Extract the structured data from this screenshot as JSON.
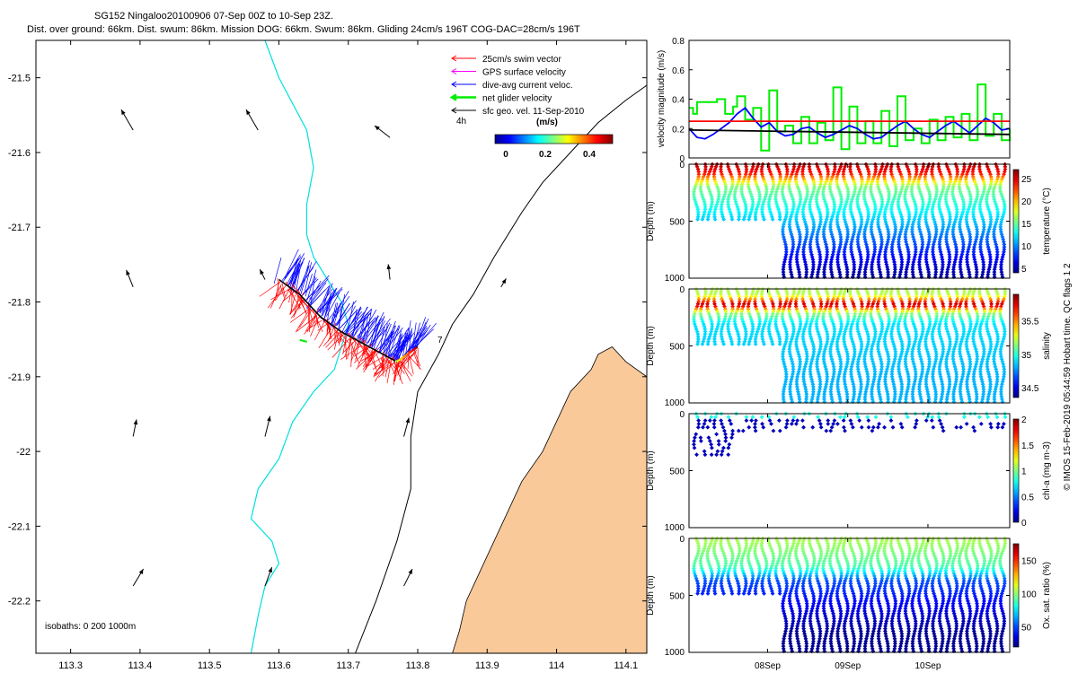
{
  "header": {
    "title": "SG152 Ningaloo20100906 07-Sep 00Z to 10-Sep 23Z.",
    "subtitle": "Dist. over ground: 66km. Dist. swum: 86km. Mission DOG: 66km. Swum: 86km. Gliding 24cm/s 196T COG-DAC=28cm/s 196T"
  },
  "colors": {
    "swim": "#ff0000",
    "gps": "#ff00ff",
    "dac": "#0000ff",
    "net": "#00ee00",
    "sfc": "#000000",
    "coast": "#00e0e0",
    "land": "#f9c99a",
    "refline": "#ff0000"
  },
  "legend": {
    "items": [
      {
        "label": "25cm/s swim vector",
        "color": "#ff0000"
      },
      {
        "label": "GPS surface velocity",
        "color": "#ff00ff"
      },
      {
        "label": "dive-avg current veloc.",
        "color": "#0000ff"
      },
      {
        "label": "net glider velocity",
        "color": "#00ee00"
      },
      {
        "label": "sfc geo. vel. 11-Sep-2010",
        "color": "#000000"
      }
    ],
    "time_label": "4h",
    "speed_label": "(m/s)",
    "colorbar_ticks": [
      "0",
      "0.2",
      "0.4"
    ]
  },
  "map": {
    "isobaths_label": "isobaths: 0   200  1000m",
    "end_label": "7"
  },
  "footer": {
    "credit": "© IMOS 15-Feb-2019 05:44:59 Hobart time. QC flags 1  2"
  },
  "chart_data": [
    {
      "type": "scatter",
      "name": "track-map",
      "xlabel": "",
      "ylabel": "",
      "xlim": [
        113.25,
        114.13
      ],
      "ylim": [
        -22.27,
        -21.45
      ],
      "xticks": [
        113.3,
        113.4,
        113.5,
        113.6,
        113.7,
        113.8,
        113.9,
        114.0,
        114.1
      ],
      "xtick_labels": [
        "113.3",
        "113.4",
        "113.5",
        "113.6",
        "113.7",
        "113.8",
        "113.9",
        "114",
        "114.1"
      ],
      "yticks": [
        -21.5,
        -21.6,
        -21.7,
        -21.8,
        -21.9,
        -22.0,
        -22.1,
        -22.2
      ],
      "ytick_labels": [
        "-21.5",
        "-21.6",
        "-21.7",
        "-21.8",
        "-21.9",
        "-22",
        "-22.1",
        "-22.2"
      ],
      "isobath_0": [
        [
          114.13,
          -21.9
        ],
        [
          114.1,
          -21.88
        ],
        [
          114.08,
          -21.86
        ],
        [
          114.06,
          -21.87
        ],
        [
          114.05,
          -21.89
        ],
        [
          114.02,
          -21.92
        ],
        [
          114.0,
          -21.96
        ],
        [
          113.98,
          -22.0
        ],
        [
          113.95,
          -22.04
        ],
        [
          113.93,
          -22.08
        ],
        [
          113.91,
          -22.12
        ],
        [
          113.89,
          -22.16
        ],
        [
          113.87,
          -22.2
        ],
        [
          113.86,
          -22.24
        ],
        [
          113.85,
          -22.27
        ],
        [
          114.13,
          -22.27
        ]
      ],
      "isobath_200": [
        [
          113.56,
          -22.27
        ],
        [
          113.57,
          -22.22
        ],
        [
          113.58,
          -22.18
        ],
        [
          113.6,
          -22.15
        ],
        [
          113.59,
          -22.12
        ],
        [
          113.56,
          -22.09
        ],
        [
          113.57,
          -22.05
        ],
        [
          113.6,
          -22.01
        ],
        [
          113.62,
          -21.96
        ],
        [
          113.65,
          -21.92
        ],
        [
          113.68,
          -21.89
        ],
        [
          113.69,
          -21.86
        ],
        [
          113.7,
          -21.83
        ],
        [
          113.69,
          -21.8
        ],
        [
          113.67,
          -21.77
        ],
        [
          113.65,
          -21.74
        ],
        [
          113.64,
          -21.71
        ],
        [
          113.64,
          -21.67
        ],
        [
          113.65,
          -21.62
        ],
        [
          113.64,
          -21.57
        ],
        [
          113.6,
          -21.5
        ],
        [
          113.58,
          -21.45
        ]
      ],
      "isobath_1000": [
        [
          113.71,
          -22.27
        ],
        [
          113.74,
          -22.2
        ],
        [
          113.77,
          -22.12
        ],
        [
          113.79,
          -22.05
        ],
        [
          113.79,
          -21.98
        ],
        [
          113.8,
          -21.92
        ],
        [
          113.83,
          -21.87
        ],
        [
          113.85,
          -21.83
        ],
        [
          113.88,
          -21.79
        ],
        [
          113.91,
          -21.74
        ],
        [
          113.95,
          -21.68
        ],
        [
          113.98,
          -21.64
        ],
        [
          114.02,
          -21.6
        ],
        [
          114.06,
          -21.56
        ],
        [
          114.1,
          -21.53
        ],
        [
          114.13,
          -21.51
        ]
      ],
      "track": [
        [
          113.6,
          -21.77
        ],
        [
          113.63,
          -21.79
        ],
        [
          113.66,
          -21.82
        ],
        [
          113.69,
          -21.84
        ],
        [
          113.72,
          -21.855
        ],
        [
          113.75,
          -21.87
        ],
        [
          113.77,
          -21.88
        ],
        [
          113.8,
          -21.86
        ]
      ],
      "geo_arrows": [
        {
          "lon": 113.39,
          "lat": -21.57,
          "u": -0.35,
          "v": 0.6
        },
        {
          "lon": 113.57,
          "lat": -21.57,
          "u": -0.35,
          "v": 0.6
        },
        {
          "lon": 113.76,
          "lat": -21.58,
          "u": -0.45,
          "v": 0.35
        },
        {
          "lon": 113.39,
          "lat": -21.78,
          "u": -0.2,
          "v": 0.5
        },
        {
          "lon": 113.58,
          "lat": -21.77,
          "u": -0.15,
          "v": 0.3
        },
        {
          "lon": 113.76,
          "lat": -21.77,
          "u": -0.05,
          "v": 0.45
        },
        {
          "lon": 113.92,
          "lat": -21.78,
          "u": 0.15,
          "v": 0.25
        },
        {
          "lon": 113.39,
          "lat": -21.98,
          "u": 0.1,
          "v": 0.5
        },
        {
          "lon": 113.58,
          "lat": -21.98,
          "u": 0.15,
          "v": 0.6
        },
        {
          "lon": 113.78,
          "lat": -21.98,
          "u": 0.15,
          "v": 0.55
        },
        {
          "lon": 113.39,
          "lat": -22.18,
          "u": 0.3,
          "v": 0.5
        },
        {
          "lon": 113.58,
          "lat": -22.18,
          "u": 0.2,
          "v": 0.55
        },
        {
          "lon": 113.78,
          "lat": -22.18,
          "u": 0.25,
          "v": 0.5
        }
      ]
    },
    {
      "type": "line",
      "name": "velocity-magnitude",
      "ylabel": "velocity magnitude (m/s)",
      "ylim": [
        0,
        0.8
      ],
      "yticks": [
        0,
        0.2,
        0.4,
        0.6,
        0.8
      ],
      "ytick_labels": [
        "0",
        "0.2",
        "0.4",
        "0.6",
        "0.8"
      ],
      "xlim": [
        0,
        4
      ],
      "series": [
        {
          "name": "net glider velocity",
          "color": "#00ee00",
          "x": [
            0.0,
            0.05,
            0.1,
            0.35,
            0.45,
            0.55,
            0.6,
            0.7,
            0.8,
            0.9,
            1.0,
            1.1,
            1.2,
            1.3,
            1.4,
            1.5,
            1.6,
            1.7,
            1.8,
            1.9,
            2.0,
            2.1,
            2.2,
            2.3,
            2.4,
            2.5,
            2.6,
            2.7,
            2.8,
            2.9,
            3.0,
            3.1,
            3.2,
            3.3,
            3.4,
            3.5,
            3.6,
            3.7,
            3.8,
            3.9,
            4.0
          ],
          "y": [
            0.34,
            0.3,
            0.38,
            0.4,
            0.3,
            0.35,
            0.42,
            0.26,
            0.34,
            0.05,
            0.46,
            0.18,
            0.22,
            0.1,
            0.28,
            0.1,
            0.24,
            0.12,
            0.48,
            0.06,
            0.35,
            0.1,
            0.25,
            0.1,
            0.32,
            0.08,
            0.42,
            0.12,
            0.2,
            0.1,
            0.26,
            0.12,
            0.28,
            0.14,
            0.3,
            0.12,
            0.5,
            0.15,
            0.3,
            0.12,
            0.2
          ]
        },
        {
          "name": "dive-avg current veloc.",
          "color": "#0000ff",
          "x": [
            0.0,
            0.1,
            0.2,
            0.3,
            0.4,
            0.5,
            0.6,
            0.7,
            0.8,
            0.9,
            1.0,
            1.1,
            1.2,
            1.3,
            1.4,
            1.5,
            1.6,
            1.7,
            1.8,
            1.9,
            2.0,
            2.1,
            2.2,
            2.3,
            2.4,
            2.5,
            2.6,
            2.7,
            2.8,
            2.9,
            3.0,
            3.1,
            3.2,
            3.3,
            3.4,
            3.5,
            3.6,
            3.7,
            3.8,
            3.9,
            4.0
          ],
          "y": [
            0.2,
            0.14,
            0.13,
            0.16,
            0.2,
            0.24,
            0.3,
            0.34,
            0.27,
            0.21,
            0.24,
            0.18,
            0.15,
            0.16,
            0.2,
            0.21,
            0.17,
            0.14,
            0.16,
            0.19,
            0.22,
            0.2,
            0.16,
            0.13,
            0.14,
            0.18,
            0.22,
            0.25,
            0.2,
            0.16,
            0.14,
            0.18,
            0.22,
            0.25,
            0.21,
            0.17,
            0.22,
            0.27,
            0.24,
            0.19,
            0.2
          ]
        },
        {
          "name": "sfc geo. vel.",
          "color": "#000000",
          "x": [
            0,
            4
          ],
          "y": [
            0.19,
            0.16
          ]
        },
        {
          "name": "25cm/s swim vector",
          "color": "#ff0000",
          "x": [
            0,
            4
          ],
          "y": [
            0.25,
            0.25
          ]
        }
      ]
    },
    {
      "type": "scatter",
      "name": "temperature-section",
      "ylabel": "Depth (m)",
      "ylim": [
        0,
        1000
      ],
      "ytick_labels": [
        "0",
        "500",
        "1000"
      ],
      "colorbar_label": "temperature (°C)",
      "colorbar_ticks": [
        "5",
        "10",
        "15",
        "20",
        "25"
      ],
      "clim": [
        4,
        27
      ],
      "profiles": 46,
      "deep_start_fraction": 0.28
    },
    {
      "type": "scatter",
      "name": "salinity-section",
      "ylabel": "Depth (m)",
      "ylim": [
        0,
        1000
      ],
      "ytick_labels": [
        "0",
        "500",
        "1000"
      ],
      "colorbar_label": "salinity",
      "colorbar_ticks": [
        "34.5",
        "35",
        "35.5"
      ],
      "clim": [
        34.35,
        35.9
      ],
      "profiles": 46,
      "deep_start_fraction": 0.28
    },
    {
      "type": "scatter",
      "name": "chla-section",
      "ylabel": "Depth (m)",
      "ylim": [
        0,
        1000
      ],
      "ytick_labels": [
        "0",
        "500",
        "1000"
      ],
      "colorbar_label": "chl-a (mg m-3)",
      "colorbar_ticks": [
        "0",
        "0.5",
        "1",
        "1.5",
        "2"
      ],
      "clim": [
        0,
        2
      ],
      "profiles": 46
    },
    {
      "type": "scatter",
      "name": "oxygen-section",
      "ylabel": "Depth (m)",
      "ylim": [
        0,
        1000
      ],
      "ytick_labels": [
        "0",
        "500",
        "1000"
      ],
      "xtick_labels": [
        "08Sep",
        "09Sep",
        "10Sep"
      ],
      "xticks": [
        0.98,
        1.98,
        2.98
      ],
      "colorbar_label": "Ox. sat. ratio (%)",
      "colorbar_ticks": [
        "50",
        "100",
        "150"
      ],
      "clim": [
        20,
        175
      ],
      "profiles": 46,
      "deep_start_fraction": 0.28
    }
  ]
}
